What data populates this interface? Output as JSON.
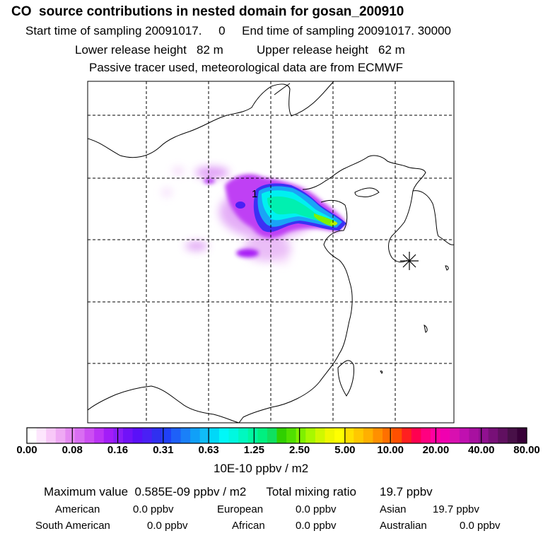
{
  "header": {
    "title": "CO  source contributions in nested domain for gosan_200910",
    "sampling_line": "Start time of sampling 20091017.     0     End time of sampling 20091017. 30000",
    "release_line": "Lower release height   82 m          Upper release height   62 m",
    "tracer_line": "Passive tracer used, meteorological data are from ECMWF"
  },
  "map": {
    "receptor_marker": "asterisk-icon",
    "contour_label": "1"
  },
  "colorbar": {
    "ticks": [
      "0.00",
      "0.08",
      "0.16",
      "0.31",
      "0.63",
      "1.25",
      "2.50",
      "5.00",
      "10.00",
      "20.00",
      "40.00",
      "80.00"
    ],
    "colors": [
      "#ffffff",
      "#fde6fd",
      "#f8c8f8",
      "#efaaf4",
      "#e58af2",
      "#d96ef2",
      "#cc4ff2",
      "#bb33f5",
      "#a31df8",
      "#8a1df8",
      "#7112f8",
      "#5a10f8",
      "#4a20f5",
      "#3030f0",
      "#2040f8",
      "#1e60f8",
      "#1a80f8",
      "#10a0f8",
      "#10bdf8",
      "#00d8f8",
      "#00f8f8",
      "#00f8e0",
      "#00f8c0",
      "#00f8a0",
      "#00f080",
      "#10e060",
      "#30d000",
      "#50e000",
      "#7ff000",
      "#a8f800",
      "#d0f800",
      "#f0f800",
      "#ffff00",
      "#ffe000",
      "#ffc800",
      "#ffb000",
      "#ff9000",
      "#ff7000",
      "#ff5000",
      "#ff2020",
      "#ff0050",
      "#ff0080",
      "#ff00a0",
      "#f000b0",
      "#d810b0",
      "#c010b0",
      "#a810a0",
      "#901090",
      "#781078",
      "#601060",
      "#481048",
      "#380038"
    ],
    "units": "10E-10 ppbv / m2"
  },
  "summary": {
    "max_label": "Maximum value",
    "max_value": "0.585E-09 ppbv / m2",
    "total_label": "Total mixing ratio",
    "total_value": "19.7 ppbv",
    "regions": [
      {
        "name": "American",
        "value": "0.0 ppbv"
      },
      {
        "name": "European",
        "value": "0.0 ppbv"
      },
      {
        "name": "Asian",
        "value": "19.7 ppbv"
      },
      {
        "name": "South American",
        "value": "0.0 ppbv"
      },
      {
        "name": "African",
        "value": "0.0 ppbv"
      },
      {
        "name": "Australian",
        "value": "0.0 ppbv"
      }
    ]
  }
}
